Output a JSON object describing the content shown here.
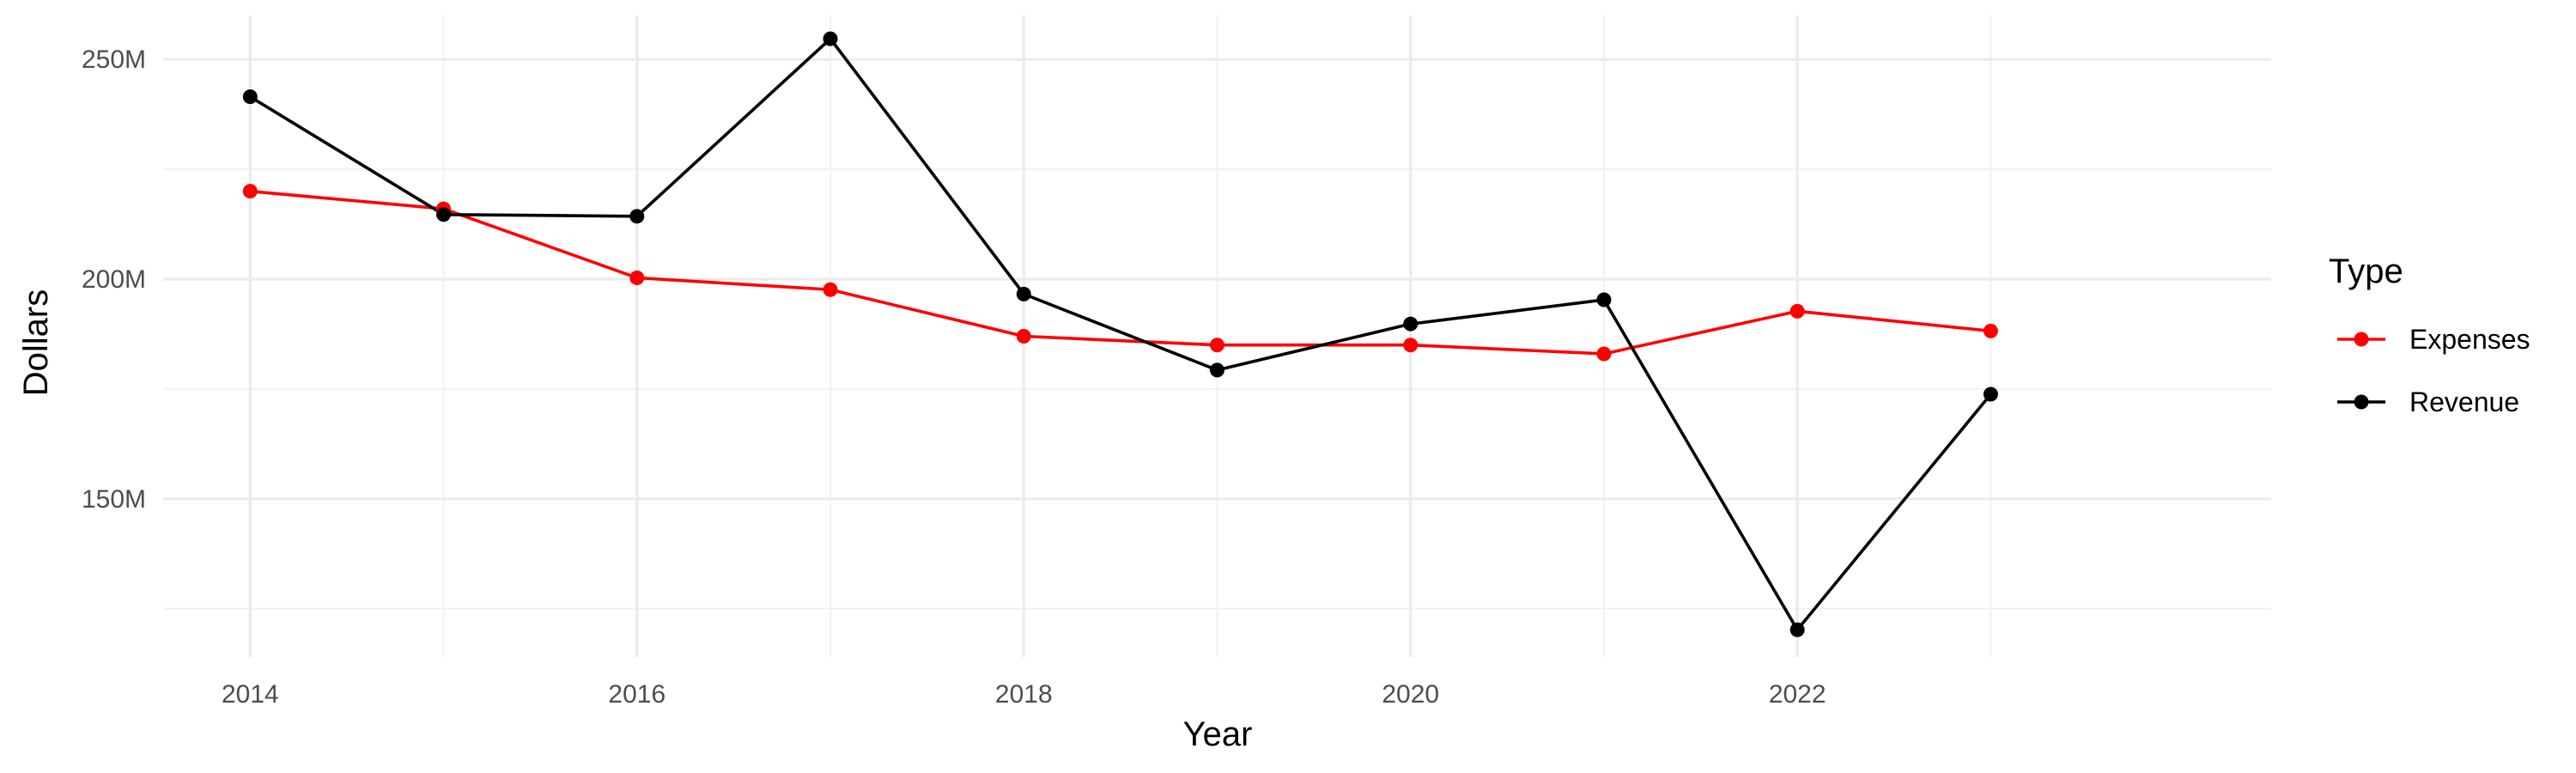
{
  "chart_data": {
    "type": "line",
    "title": "",
    "xlabel": "Year",
    "ylabel": "Dollars",
    "x": [
      2014,
      2015,
      2016,
      2017,
      2018,
      2019,
      2020,
      2021,
      2022,
      2023
    ],
    "x_ticks": [
      2014,
      2016,
      2018,
      2020,
      2022
    ],
    "x_tick_labels": [
      "2014",
      "2016",
      "2018",
      "2020",
      "2022"
    ],
    "xlim": [
      2013.55,
      2024.45
    ],
    "y_ticks": [
      150000000,
      200000000,
      250000000
    ],
    "y_tick_labels": [
      "150M",
      "200M",
      "250M"
    ],
    "y_minor_ticks": [
      125000000,
      175000000,
      225000000
    ],
    "ylim": [
      114000000,
      260000000
    ],
    "grid": true,
    "legend": {
      "title": "Type",
      "placement": "right"
    },
    "series": [
      {
        "name": "Expenses",
        "color": "#ff0000",
        "values": [
          220000000,
          216000000,
          200300000,
          197600000,
          187000000,
          185000000,
          185000000,
          183000000,
          192700000,
          188200000
        ]
      },
      {
        "name": "Revenue",
        "color": "#000000",
        "values": [
          241500000,
          214700000,
          214300000,
          254700000,
          196600000,
          179300000,
          189800000,
          195300000,
          120200000,
          173800000
        ]
      }
    ]
  }
}
